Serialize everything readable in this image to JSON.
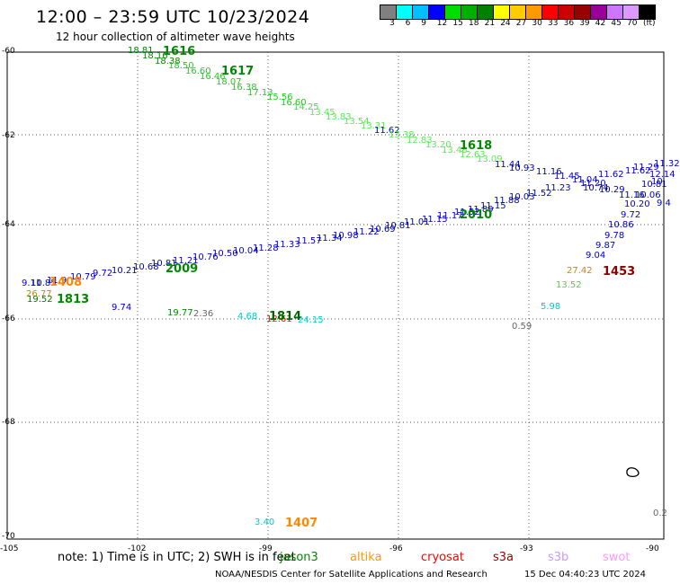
{
  "title": "12:00 – 23:59 UTC 10/23/2024",
  "subtitle": "12 hour collection of altimeter wave heights",
  "colorbar": {
    "colors": [
      "#808080",
      "#00ffff",
      "#00bfff",
      "#0000ff",
      "#00dd00",
      "#00b000",
      "#008000",
      "#ffff00",
      "#ffcc00",
      "#ff9900",
      "#ff0000",
      "#cc0000",
      "#990000",
      "#990099",
      "#cc77ff",
      "#dd99ff",
      "#000000"
    ],
    "ticks": [
      "3",
      "6",
      "9",
      "12",
      "15",
      "18",
      "21",
      "24",
      "27",
      "30",
      "33",
      "36",
      "39",
      "42",
      "45",
      "70"
    ],
    "unit": "(ft)"
  },
  "lat_labels": [
    "-60",
    "-62",
    "-64",
    "-66",
    "-68",
    "-70"
  ],
  "lon_labels": [
    "-105",
    "-102",
    "-99",
    "-96",
    "-93",
    "-90"
  ],
  "wave_labels": {
    "jason3_track": [
      {
        "text": "18.81",
        "color": "#008800"
      },
      {
        "text": "18.16",
        "color": "#008800"
      },
      {
        "text": "18.38",
        "color": "#008800"
      },
      {
        "text": "18.50",
        "color": "#22cc22"
      },
      {
        "text": "16.60",
        "color": "#22cc22"
      },
      {
        "text": "16.46",
        "color": "#22cc22"
      },
      {
        "text": "18.07",
        "color": "#22cc22"
      },
      {
        "text": "16.38",
        "color": "#22cc22"
      },
      {
        "text": "17.13",
        "color": "#22cc22"
      },
      {
        "text": "15.56",
        "color": "#22cc22"
      },
      {
        "text": "16.60",
        "color": "#22cc22"
      },
      {
        "text": "14.25",
        "color": "#44dd44"
      },
      {
        "text": "13.45",
        "color": "#55ee55"
      },
      {
        "text": "13.83",
        "color": "#55ee55"
      },
      {
        "text": "13.54",
        "color": "#55ee55"
      },
      {
        "text": "13.31",
        "color": "#55ee55"
      },
      {
        "text": "11.62",
        "color": "#0000cc"
      },
      {
        "text": "13.38",
        "color": "#55ee55"
      },
      {
        "text": "12.83",
        "color": "#55ee55"
      },
      {
        "text": "13.20",
        "color": "#55ee55"
      },
      {
        "text": "13.48",
        "color": "#55ee55"
      },
      {
        "text": "12.63",
        "color": "#55ee55"
      },
      {
        "text": "13.09",
        "color": "#55ee55"
      }
    ],
    "east_track": [
      {
        "text": "11.44",
        "color": "#0000cc"
      },
      {
        "text": "10.93",
        "color": "#0000cc"
      },
      {
        "text": "11.16",
        "color": "#0000cc"
      },
      {
        "text": "11.45",
        "color": "#0000cc"
      },
      {
        "text": "11.04",
        "color": "#0000cc"
      },
      {
        "text": "11.20",
        "color": "#0000cc"
      },
      {
        "text": "10.74",
        "color": "#0000cc"
      },
      {
        "text": "11.62",
        "color": "#0000cc"
      },
      {
        "text": "11.62",
        "color": "#0000cc"
      },
      {
        "text": "11.29",
        "color": "#0000cc"
      },
      {
        "text": "10.81",
        "color": "#0000cc"
      },
      {
        "text": "12.14",
        "color": "#0000cc"
      },
      {
        "text": "11.32",
        "color": "#0000cc"
      },
      {
        "text": "11.23",
        "color": "#0000cc"
      },
      {
        "text": "10.29",
        "color": "#0000cc"
      },
      {
        "text": "11.16",
        "color": "#0000cc"
      },
      {
        "text": "10.06",
        "color": "#0000cc"
      },
      {
        "text": "10.20",
        "color": "#0000cc"
      },
      {
        "text": "10.86",
        "color": "#0000cc"
      },
      {
        "text": "9.72",
        "color": "#0000cc"
      },
      {
        "text": "9.78",
        "color": "#0000cc"
      },
      {
        "text": "9.87",
        "color": "#0000cc"
      },
      {
        "text": "9.04",
        "color": "#0000cc"
      },
      {
        "text": "11.52",
        "color": "#0000cc"
      },
      {
        "text": "10.03",
        "color": "#0000cc"
      },
      {
        "text": "11.88",
        "color": "#0000cc"
      },
      {
        "text": "9.4",
        "color": "#0000cc"
      },
      {
        "text": "10.",
        "color": "#0000cc"
      }
    ],
    "diag_track": [
      {
        "text": "9.11",
        "color": "#0000cc"
      },
      {
        "text": "10.85",
        "color": "#0000cc"
      },
      {
        "text": "11.9",
        "color": "#0000cc"
      },
      {
        "text": "10.79",
        "color": "#0000cc"
      },
      {
        "text": "9.72",
        "color": "#0000cc"
      },
      {
        "text": "10.21",
        "color": "#0000cc"
      },
      {
        "text": "10.68",
        "color": "#0000cc"
      },
      {
        "text": "10.81",
        "color": "#0000cc"
      },
      {
        "text": "11.21",
        "color": "#0000cc"
      },
      {
        "text": "10.76",
        "color": "#0000cc"
      },
      {
        "text": "10.50",
        "color": "#0000cc"
      },
      {
        "text": "10.04",
        "color": "#0000cc"
      },
      {
        "text": "11.28",
        "color": "#0000cc"
      },
      {
        "text": "11.33",
        "color": "#0000cc"
      },
      {
        "text": "11.57",
        "color": "#0000cc"
      },
      {
        "text": "11.34",
        "color": "#0000cc"
      },
      {
        "text": "10.98",
        "color": "#0000cc"
      },
      {
        "text": "11.22",
        "color": "#0000cc"
      },
      {
        "text": "10.69",
        "color": "#0000cc"
      },
      {
        "text": "10.81",
        "color": "#0000cc"
      },
      {
        "text": "11.01",
        "color": "#0000cc"
      },
      {
        "text": "11.15",
        "color": "#0000cc"
      },
      {
        "text": "11.17",
        "color": "#0000cc"
      },
      {
        "text": "11.52",
        "color": "#0000cc"
      },
      {
        "text": "11.89",
        "color": "#0000cc"
      },
      {
        "text": "11.15",
        "color": "#0000cc"
      }
    ],
    "scattered": [
      {
        "text": "26.77",
        "color": "#cc8800"
      },
      {
        "text": "19.52",
        "color": "#007700"
      },
      {
        "text": "9.74",
        "color": "#0000cc"
      },
      {
        "text": "19.77",
        "color": "#008800"
      },
      {
        "text": "2.36",
        "color": "#666666"
      },
      {
        "text": "4.68",
        "color": "#00cccc"
      },
      {
        "text": "12.61",
        "color": "#ff0000"
      },
      {
        "text": "24.15",
        "color": "#00cccc"
      },
      {
        "text": "5.98",
        "color": "#00cccc"
      },
      {
        "text": "0.59",
        "color": "#666666"
      },
      {
        "text": "27.42",
        "color": "#cc8800"
      },
      {
        "text": "13.52",
        "color": "#55cc55"
      },
      {
        "text": "3.40",
        "color": "#00cccc"
      },
      {
        "text": "0.2",
        "color": "#666666"
      }
    ]
  },
  "pass_times": [
    {
      "text": "1616",
      "color": "#008800"
    },
    {
      "text": "1617",
      "color": "#008800"
    },
    {
      "text": "1618",
      "color": "#008800"
    },
    {
      "text": "2010",
      "color": "#008800"
    },
    {
      "text": "2009",
      "color": "#008800"
    },
    {
      "text": "1408",
      "color": "#ff8800"
    },
    {
      "text": "1813",
      "color": "#008800"
    },
    {
      "text": "1814",
      "color": "#006600"
    },
    {
      "text": "1453",
      "color": "#880000"
    },
    {
      "text": "1407",
      "color": "#ff8800"
    }
  ],
  "note_text": "note:  1) Time is in UTC; 2) SWH is in feet",
  "satellites": [
    {
      "name": "jason3",
      "color": "#008800"
    },
    {
      "name": "altika",
      "color": "#ff9900"
    },
    {
      "name": "cryosat",
      "color": "#ff0000"
    },
    {
      "name": "s3a",
      "color": "#990000"
    },
    {
      "name": "s3b",
      "color": "#cc99ff"
    },
    {
      "name": "swot",
      "color": "#ff99ff"
    }
  ],
  "credit": "NOAA/NESDIS Center for Satellite Applications and Research",
  "timestamp": "15 Dec 04:40:23 UTC 2024"
}
